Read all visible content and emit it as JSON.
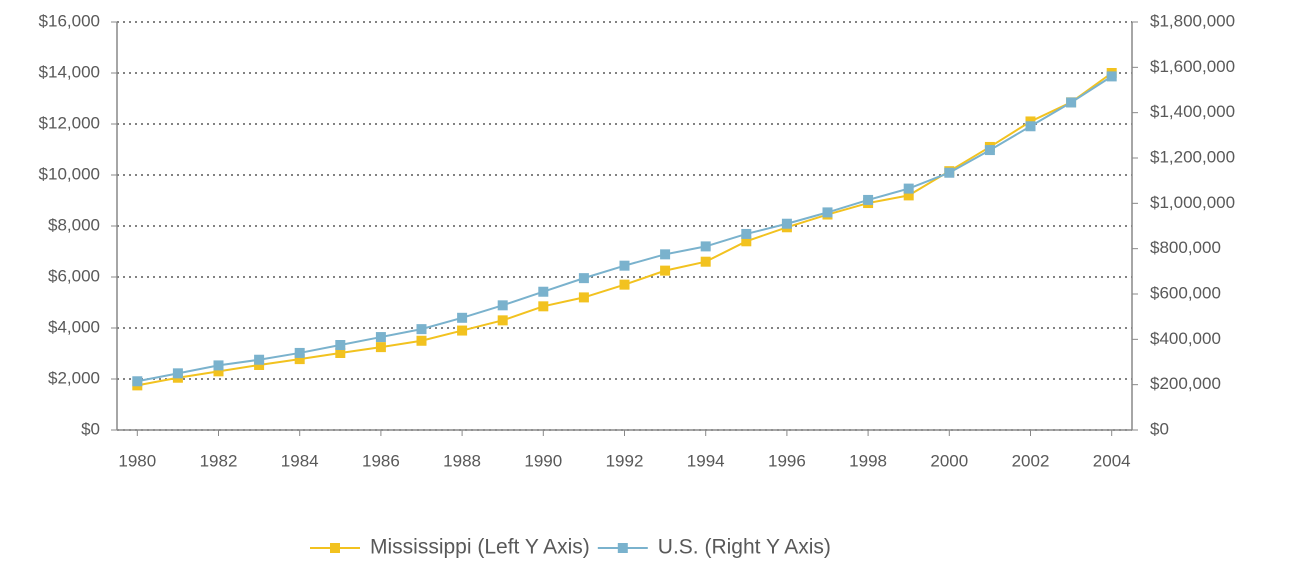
{
  "chart_data": {
    "type": "line",
    "x": [
      1980,
      1981,
      1982,
      1983,
      1984,
      1985,
      1986,
      1987,
      1988,
      1989,
      1990,
      1991,
      1992,
      1993,
      1994,
      1995,
      1996,
      1997,
      1998,
      1999,
      2000,
      2001,
      2002,
      2003,
      2004
    ],
    "xlim": [
      1979.5,
      2004.5
    ],
    "xticks": [
      1980,
      1982,
      1984,
      1986,
      1988,
      1990,
      1992,
      1994,
      1996,
      1998,
      2000,
      2002,
      2004
    ],
    "ylim": [
      0,
      16000
    ],
    "yticks": [
      {
        "value": 0,
        "label": "$0"
      },
      {
        "value": 2000,
        "label": "$2,000"
      },
      {
        "value": 4000,
        "label": "$4,000"
      },
      {
        "value": 6000,
        "label": "$6,000"
      },
      {
        "value": 8000,
        "label": "$8,000"
      },
      {
        "value": 10000,
        "label": "$10,000"
      },
      {
        "value": 12000,
        "label": "$12,000"
      },
      {
        "value": 14000,
        "label": "$14,000"
      },
      {
        "value": 16000,
        "label": "$16,000"
      }
    ],
    "y2lim": [
      0,
      1800000
    ],
    "y2ticks": [
      {
        "value": 0,
        "label": "$0"
      },
      {
        "value": 200000,
        "label": "$200,000"
      },
      {
        "value": 400000,
        "label": "$400,000"
      },
      {
        "value": 600000,
        "label": "$600,000"
      },
      {
        "value": 800000,
        "label": "$800,000"
      },
      {
        "value": 1000000,
        "label": "$1,000,000"
      },
      {
        "value": 1200000,
        "label": "$1,200,000"
      },
      {
        "value": 1400000,
        "label": "$1,400,000"
      },
      {
        "value": 1600000,
        "label": "$1,600,000"
      },
      {
        "value": 1800000,
        "label": "$1,800,000"
      }
    ],
    "grid": true,
    "legend": "bottom",
    "series": [
      {
        "name": "Mississippi (Left Y Axis)",
        "color": "#f2c21f",
        "axis": "y",
        "values": [
          1750,
          2050,
          2300,
          2550,
          2780,
          3020,
          3250,
          3500,
          3900,
          4300,
          4850,
          5200,
          5700,
          6250,
          6600,
          7400,
          7950,
          8450,
          8900,
          9200,
          10150,
          11100,
          12100,
          12850,
          14000
        ]
      },
      {
        "name": "U.S. (Right Y Axis)",
        "color": "#7ab2cd",
        "axis": "y2",
        "values": [
          215000,
          250000,
          285000,
          310000,
          340000,
          375000,
          410000,
          445000,
          495000,
          550000,
          610000,
          670000,
          725000,
          775000,
          810000,
          865000,
          910000,
          960000,
          1015000,
          1065000,
          1135000,
          1235000,
          1340000,
          1445000,
          1560000
        ]
      }
    ]
  }
}
